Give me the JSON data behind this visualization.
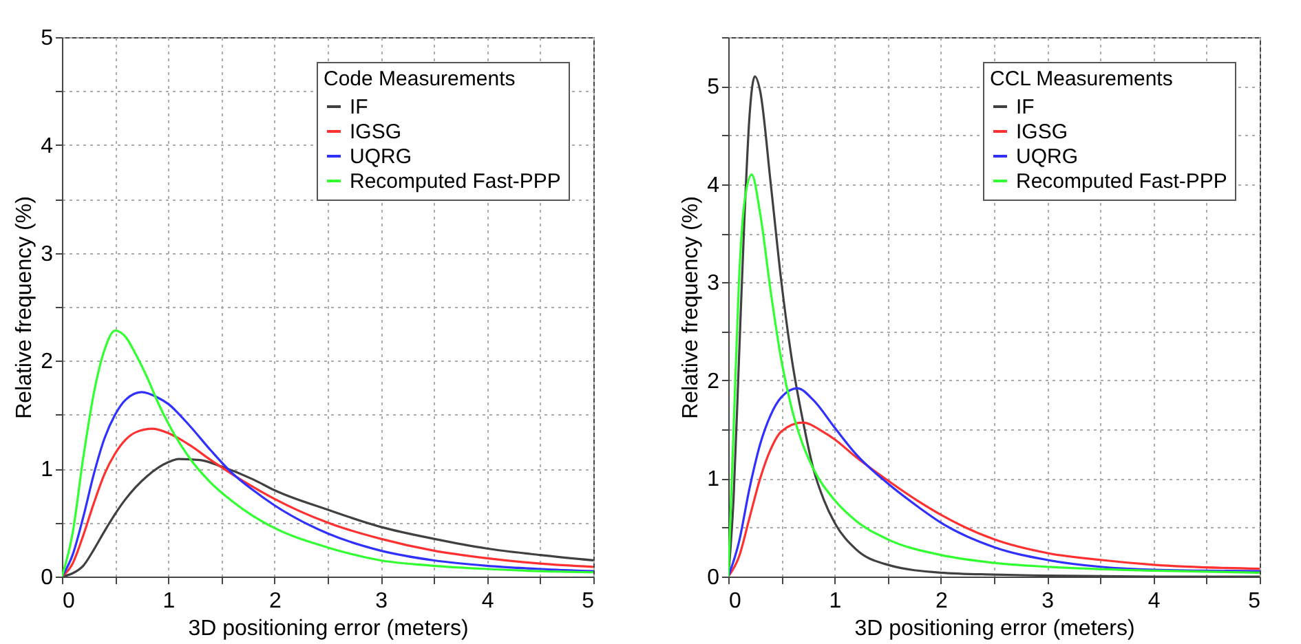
{
  "chart_data": [
    {
      "type": "line",
      "legend_title": "Code Measurements",
      "xlabel": "3D positioning error (meters)",
      "ylabel": "Relative frequency (%)",
      "xlim": [
        0,
        5
      ],
      "ylim": [
        0,
        5
      ],
      "xticks": [
        0,
        {
          "value": 0.5,
          "label": null
        },
        1,
        {
          "value": 1.5,
          "label": null
        },
        2,
        {
          "value": 2.5,
          "label": null
        },
        3,
        {
          "value": 3.5,
          "label": null
        },
        4,
        {
          "value": 4.5,
          "label": null
        },
        5
      ],
      "yticks": [
        0,
        {
          "value": 0.5,
          "label": null
        },
        1,
        {
          "value": 1.5,
          "label": null
        },
        2,
        {
          "value": 2.5,
          "label": null
        },
        3,
        {
          "value": 3.5,
          "label": null
        },
        4,
        {
          "value": 4.5,
          "label": null
        },
        5
      ],
      "grid": true,
      "legend": "top right",
      "line_style": "solid",
      "marker": "none",
      "series": [
        {
          "name": "IF",
          "color": "#404040",
          "x": [
            0,
            0.1,
            0.2,
            0.3,
            0.4,
            0.5,
            0.6,
            0.8,
            1.0,
            1.1,
            1.3,
            1.5,
            1.8,
            2.0,
            2.5,
            3.0,
            3.5,
            4,
            4.5,
            5
          ],
          "values": [
            0,
            0.03,
            0.1,
            0.25,
            0.42,
            0.58,
            0.72,
            0.93,
            1.06,
            1.09,
            1.08,
            1.02,
            0.9,
            0.8,
            0.62,
            0.46,
            0.35,
            0.26,
            0.2,
            0.15
          ]
        },
        {
          "name": "IGSG",
          "color": "#ff3030",
          "x": [
            0,
            0.1,
            0.2,
            0.3,
            0.4,
            0.5,
            0.6,
            0.7,
            0.85,
            1.0,
            1.2,
            1.4,
            1.6,
            1.8,
            2.0,
            2.5,
            3.0,
            3.5,
            4,
            4.5,
            5
          ],
          "values": [
            0,
            0.12,
            0.38,
            0.68,
            0.95,
            1.14,
            1.27,
            1.34,
            1.37,
            1.33,
            1.22,
            1.08,
            0.95,
            0.83,
            0.72,
            0.5,
            0.35,
            0.24,
            0.17,
            0.12,
            0.09
          ]
        },
        {
          "name": "UQRG",
          "color": "#3030ff",
          "x": [
            0,
            0.1,
            0.2,
            0.3,
            0.4,
            0.5,
            0.6,
            0.75,
            0.9,
            1.0,
            1.2,
            1.4,
            1.6,
            1.8,
            2.0,
            2.5,
            3.0,
            3.5,
            4,
            4.5,
            5
          ],
          "values": [
            0,
            0.2,
            0.55,
            0.95,
            1.28,
            1.5,
            1.64,
            1.71,
            1.66,
            1.6,
            1.4,
            1.17,
            0.96,
            0.8,
            0.66,
            0.4,
            0.24,
            0.15,
            0.1,
            0.07,
            0.05
          ]
        },
        {
          "name": "Recomputed Fast-PPP",
          "color": "#30ff30",
          "x": [
            0,
            0.1,
            0.2,
            0.3,
            0.4,
            0.5,
            0.6,
            0.7,
            0.8,
            0.9,
            1.0,
            1.2,
            1.4,
            1.6,
            1.8,
            2.0,
            2.5,
            3.0,
            3.5,
            4,
            4.5,
            5
          ],
          "values": [
            0,
            0.4,
            1.1,
            1.7,
            2.1,
            2.28,
            2.22,
            2.05,
            1.85,
            1.62,
            1.42,
            1.1,
            0.87,
            0.7,
            0.56,
            0.45,
            0.27,
            0.15,
            0.1,
            0.07,
            0.05,
            0.04
          ]
        }
      ]
    },
    {
      "type": "line",
      "legend_title": "CCL Measurements",
      "xlabel": "3D positioning error (meters)",
      "ylabel": "Relative frequency (%)",
      "xlim": [
        0,
        5
      ],
      "ylim": [
        0,
        5.5
      ],
      "xticks": [
        0,
        {
          "value": 0.5,
          "label": null
        },
        1,
        {
          "value": 1.5,
          "label": null
        },
        2,
        {
          "value": 2.5,
          "label": null
        },
        3,
        {
          "value": 3.5,
          "label": null
        },
        4,
        {
          "value": 4.5,
          "label": null
        },
        5
      ],
      "yticks": [
        0,
        {
          "value": 0.5,
          "label": null
        },
        1,
        {
          "value": 1.5,
          "label": null
        },
        2,
        {
          "value": 2.5,
          "label": null
        },
        3,
        {
          "value": 3.5,
          "label": null
        },
        4,
        {
          "value": 4.5,
          "label": null
        },
        5,
        {
          "value": 5.5,
          "label": null
        }
      ],
      "grid": true,
      "legend": "top right",
      "line_style": "solid",
      "marker": "none",
      "series": [
        {
          "name": "IF",
          "color": "#404040",
          "x": [
            0,
            0.05,
            0.1,
            0.15,
            0.2,
            0.25,
            0.3,
            0.4,
            0.5,
            0.6,
            0.7,
            0.8,
            0.9,
            1.0,
            1.2,
            1.5,
            2.0,
            2.5,
            3,
            4,
            5
          ],
          "values": [
            0,
            0.8,
            2.2,
            3.6,
            4.7,
            5.1,
            4.95,
            4.0,
            3.0,
            2.2,
            1.6,
            1.1,
            0.78,
            0.55,
            0.28,
            0.12,
            0.04,
            0.02,
            0.01,
            0,
            0
          ]
        },
        {
          "name": "IGSG",
          "color": "#ff3030",
          "x": [
            0,
            0.1,
            0.2,
            0.3,
            0.4,
            0.5,
            0.7,
            0.9,
            1.0,
            1.2,
            1.5,
            1.8,
            2.0,
            2.5,
            3,
            3.5,
            4,
            5
          ],
          "values": [
            0,
            0.2,
            0.6,
            1.0,
            1.3,
            1.48,
            1.57,
            1.47,
            1.4,
            1.22,
            0.98,
            0.76,
            0.63,
            0.38,
            0.24,
            0.17,
            0.12,
            0.08
          ]
        },
        {
          "name": "UQRG",
          "color": "#3030ff",
          "x": [
            0,
            0.1,
            0.2,
            0.3,
            0.4,
            0.5,
            0.65,
            0.8,
            1.0,
            1.2,
            1.5,
            1.8,
            2.0,
            2.5,
            3,
            3.5,
            4,
            5
          ],
          "values": [
            0,
            0.35,
            0.9,
            1.35,
            1.65,
            1.83,
            1.92,
            1.8,
            1.52,
            1.25,
            0.95,
            0.7,
            0.55,
            0.3,
            0.17,
            0.1,
            0.07,
            0.055
          ]
        },
        {
          "name": "Recomputed Fast-PPP",
          "color": "#30ff30",
          "x": [
            0,
            0.05,
            0.1,
            0.15,
            0.22,
            0.3,
            0.4,
            0.5,
            0.6,
            0.7,
            0.8,
            1.0,
            1.2,
            1.5,
            2.0,
            2.5,
            3,
            4,
            5
          ],
          "values": [
            0,
            1.5,
            3.0,
            3.8,
            4.1,
            3.7,
            2.9,
            2.2,
            1.7,
            1.35,
            1.1,
            0.78,
            0.57,
            0.38,
            0.22,
            0.14,
            0.1,
            0.06,
            0.04
          ]
        }
      ]
    }
  ]
}
